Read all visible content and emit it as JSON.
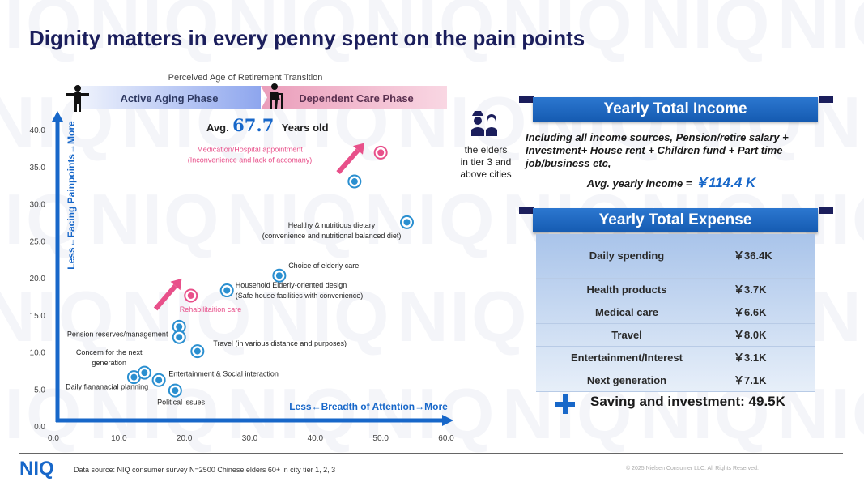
{
  "title": "Dignity matters in every penny spent on the pain points",
  "watermark_text": "NIQ",
  "chart_data": {
    "type": "scatter",
    "title": "Perceived Age of Retirement Transition",
    "xlabel": "Less←Breadth of Attention→More",
    "ylabel": "Less←Facing Painpoints→More",
    "xlim": [
      0,
      60
    ],
    "ylim": [
      0,
      40
    ],
    "x_ticks": [
      "0.0",
      "10.0",
      "20.0",
      "30.0",
      "40.0",
      "50.0",
      "60.0"
    ],
    "y_ticks": [
      "0.0",
      "5.0",
      "10.0",
      "15.0",
      "20.0",
      "25.0",
      "30.0",
      "35.0",
      "40.0"
    ],
    "phases": [
      {
        "label": "Active Aging Phase",
        "x_start": 0,
        "x_end": 31
      },
      {
        "label": "Dependent Care Phase",
        "x_start": 31,
        "x_end": 60
      }
    ],
    "avg_age_prefix": "Avg.",
    "avg_age_value": "67.7",
    "avg_age_suffix": "Years old",
    "points": [
      {
        "x": 50.0,
        "y": 36.9,
        "highlight": true
      },
      {
        "x": 46.0,
        "y": 33.0,
        "highlight": false
      },
      {
        "x": 54.0,
        "y": 27.5,
        "highlight": false
      },
      {
        "x": 34.5,
        "y": 20.3,
        "highlight": false
      },
      {
        "x": 26.5,
        "y": 18.3,
        "highlight": false
      },
      {
        "x": 21.0,
        "y": 17.6,
        "highlight": true
      },
      {
        "x": 19.2,
        "y": 13.4,
        "highlight": false
      },
      {
        "x": 19.2,
        "y": 12.0,
        "highlight": false
      },
      {
        "x": 22.0,
        "y": 10.1,
        "highlight": false
      },
      {
        "x": 12.3,
        "y": 6.6,
        "highlight": false
      },
      {
        "x": 13.9,
        "y": 7.2,
        "highlight": false
      },
      {
        "x": 16.1,
        "y": 6.2,
        "highlight": false
      },
      {
        "x": 18.6,
        "y": 4.8,
        "highlight": false
      }
    ],
    "annotations": [
      {
        "lines": [
          "Medication/Hospital appointment",
          "(Inconvenience and lack of accomany)"
        ],
        "x": 30.0,
        "y": 37.0,
        "anchor": "middle",
        "highlight": true
      },
      {
        "lines": [
          "Healthy & nutritious dietary",
          "(convenience and nutritional balanced diet)"
        ],
        "x": 42.5,
        "y": 26.8,
        "anchor": "middle",
        "highlight": false
      },
      {
        "lines": [
          "Choice of elderly care"
        ],
        "x": 35.9,
        "y": 21.3,
        "anchor": "start",
        "highlight": false
      },
      {
        "lines": [
          "Household Elderly-oriented design",
          "(Safe house facilities with convenience)"
        ],
        "x": 27.8,
        "y": 18.7,
        "anchor": "start",
        "highlight": false
      },
      {
        "lines": [
          "Rehabilitaition care"
        ],
        "x": 24.0,
        "y": 15.4,
        "anchor": "middle",
        "highlight": true
      },
      {
        "lines": [
          "Pension reserves/management"
        ],
        "x": 17.5,
        "y": 12.1,
        "anchor": "end",
        "highlight": false
      },
      {
        "lines": [
          "Travel  (in various distance and purposes)"
        ],
        "x": 24.4,
        "y": 10.8,
        "anchor": "start",
        "highlight": false
      },
      {
        "lines": [
          "Concern for the next",
          "generation"
        ],
        "x": 8.5,
        "y": 9.6,
        "anchor": "middle",
        "highlight": false
      },
      {
        "lines": [
          "Entertainment & Social interaction"
        ],
        "x": 17.6,
        "y": 6.7,
        "anchor": "start",
        "highlight": false
      },
      {
        "lines": [
          "Daily fiananacial planning"
        ],
        "x": 14.5,
        "y": 5.0,
        "anchor": "end",
        "highlight": false
      },
      {
        "lines": [
          "Political issues"
        ],
        "x": 19.5,
        "y": 2.9,
        "anchor": "middle",
        "highlight": false
      }
    ],
    "trend_arrows": [
      {
        "from": [
          15.6,
          15.8
        ],
        "to": [
          19.6,
          19.9
        ]
      },
      {
        "from": [
          43.5,
          34.2
        ],
        "to": [
          47.5,
          38.2
        ]
      }
    ]
  },
  "tier_label": [
    "the elders",
    "in tier 3 and",
    "above cities"
  ],
  "income": {
    "title": "Yearly Total Income",
    "description": "Including all income sources, Pension/retire salary + Investment+ House rent + Children fund + Part time job/business etc,",
    "avg_label": "Avg. yearly income = ",
    "avg_value": "￥114.4 K"
  },
  "expense": {
    "title": "Yearly Total Expense",
    "rows": [
      {
        "label": "Daily spending",
        "amount": "￥36.4K"
      },
      {
        "label": "Health products",
        "amount": "￥3.7K"
      },
      {
        "label": "Medical care",
        "amount": "￥6.6K"
      },
      {
        "label": "Travel",
        "amount": "￥8.0K"
      },
      {
        "label": "Entertainment/Interest",
        "amount": "￥3.1K"
      },
      {
        "label": "Next generation",
        "amount": "￥7.1K"
      }
    ]
  },
  "saving": "Saving and investment: 49.5K",
  "footer": {
    "logo": "NIQ",
    "source": "Data source: NIQ consumer survey N=2500 Chinese elders 60+ in city tier 1, 2, 3",
    "copyright": "© 2025 Nielsen Consumer LLC. All Rights Reserved."
  },
  "colors": {
    "navy": "#1b1e5c",
    "blue": "#1767c9",
    "pink": "#e8508a",
    "point": "#2a8fd0"
  }
}
